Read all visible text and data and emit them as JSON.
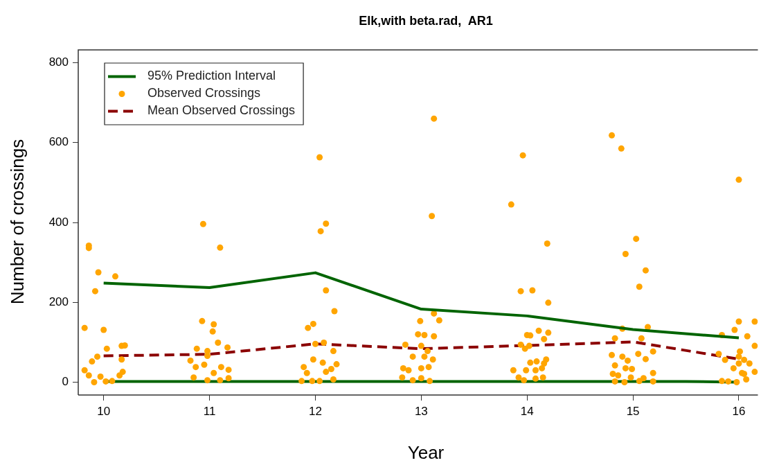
{
  "chart_data": {
    "type": "scatter",
    "title": "Elk,with beta.rad,  AR1",
    "xlabel": "Year",
    "ylabel": "Number of crossings",
    "xlim": [
      9.76,
      16.18
    ],
    "xticks": [
      10,
      11,
      12,
      13,
      14,
      15,
      16
    ],
    "ylim": [
      -32,
      832
    ],
    "yticks": [
      0,
      200,
      400,
      600,
      800
    ],
    "grid": false,
    "legend": "top left",
    "series": [
      {
        "type": "line",
        "name": "95% Prediction Interval",
        "color": "#006400",
        "line_style": "solid",
        "marker": "none",
        "x": [
          10,
          11,
          12,
          13,
          14,
          15,
          16
        ],
        "values": [
          248,
          237,
          274,
          183,
          166,
          132,
          111
        ]
      },
      {
        "type": "scatter",
        "name": "Observed Crossings",
        "color": "#ffa500",
        "marker": "circle",
        "x": [
          9.86,
          9.95,
          9.92,
          9.86,
          10.11,
          9.82,
          10.0,
          10.03,
          10.17,
          10.2,
          9.94,
          9.89,
          10.17,
          9.82,
          9.86,
          9.91,
          9.97,
          10.02,
          10.08,
          10.15,
          10.18,
          10.94,
          11.1,
          10.93,
          11.04,
          11.03,
          10.88,
          10.98,
          11.08,
          11.17,
          10.98,
          10.82,
          10.87,
          10.95,
          11.11,
          11.18,
          10.85,
          10.98,
          11.04,
          11.1,
          11.18,
          12.05,
          12.1,
          12.04,
          12.1,
          12.18,
          11.93,
          11.98,
          12.0,
          12.08,
          12.17,
          11.98,
          12.07,
          11.89,
          11.92,
          12.1,
          12.15,
          12.2,
          11.87,
          11.97,
          12.04,
          12.17,
          13.12,
          13.1,
          12.99,
          13.12,
          13.17,
          12.97,
          13.03,
          13.12,
          12.85,
          13.0,
          13.06,
          12.92,
          13.03,
          13.11,
          12.83,
          12.88,
          13.0,
          13.07,
          12.82,
          12.92,
          13.0,
          13.08,
          13.85,
          13.96,
          14.19,
          13.94,
          14.05,
          14.2,
          14.0,
          14.03,
          14.11,
          14.2,
          14.16,
          13.94,
          14.02,
          13.98,
          14.03,
          14.09,
          14.16,
          14.18,
          13.99,
          14.08,
          14.14,
          13.87,
          13.92,
          13.97,
          14.08,
          14.15,
          14.8,
          14.89,
          15.03,
          14.93,
          15.12,
          15.06,
          14.9,
          15.14,
          14.83,
          15.08,
          14.8,
          14.9,
          15.05,
          15.12,
          15.19,
          14.83,
          14.95,
          14.93,
          14.99,
          14.81,
          14.86,
          14.98,
          15.19,
          14.83,
          14.92,
          15.06,
          15.1,
          15.19,
          16.0,
          16.0,
          15.96,
          15.84,
          16.15,
          16.08,
          15.81,
          15.87,
          16.01,
          16.15,
          16.0,
          16.05,
          15.95,
          16.1,
          16.0,
          16.15,
          16.03,
          15.84,
          15.9,
          15.98,
          16.07,
          16.05
        ],
        "values": [
          342,
          275,
          228,
          336,
          265,
          136,
          131,
          84,
          91,
          92,
          64,
          52,
          57,
          30,
          17,
          0,
          14,
          2,
          3,
          17,
          26,
          396,
          337,
          153,
          145,
          127,
          84,
          78,
          99,
          87,
          66,
          54,
          38,
          44,
          38,
          31,
          12,
          5,
          23,
          5,
          10,
          378,
          397,
          563,
          230,
          178,
          136,
          146,
          96,
          99,
          78,
          57,
          49,
          38,
          23,
          26,
          33,
          45,
          3,
          3,
          3,
          7,
          660,
          416,
          153,
          172,
          155,
          120,
          118,
          115,
          94,
          91,
          78,
          64,
          64,
          57,
          35,
          30,
          35,
          38,
          12,
          5,
          10,
          3,
          445,
          568,
          347,
          228,
          230,
          199,
          118,
          117,
          129,
          124,
          108,
          94,
          91,
          84,
          49,
          52,
          47,
          57,
          30,
          30,
          35,
          30,
          12,
          5,
          9,
          12,
          618,
          585,
          359,
          321,
          280,
          239,
          134,
          138,
          110,
          110,
          68,
          64,
          71,
          58,
          77,
          42,
          54,
          35,
          33,
          21,
          17,
          12,
          23,
          2,
          0,
          3,
          10,
          2,
          507,
          152,
          131,
          118,
          152,
          115,
          71,
          56,
          77,
          91,
          64,
          56,
          35,
          47,
          47,
          26,
          23,
          3,
          2,
          0,
          7,
          21
        ]
      },
      {
        "type": "line",
        "name": "Mean Observed Crossings",
        "color": "#8b0000",
        "line_style": "dashed",
        "marker": "none",
        "x": [
          10,
          11,
          12,
          13,
          14,
          15,
          16
        ],
        "values": [
          66,
          70,
          96,
          84,
          92,
          101,
          58
        ]
      },
      {
        "type": "line",
        "color": "#006400",
        "line_style": "solid",
        "marker": "none",
        "x": [
          10,
          11,
          12,
          13,
          14,
          15,
          15.5,
          16
        ],
        "values": [
          2,
          2,
          2,
          2,
          2,
          2,
          2,
          0
        ]
      }
    ]
  }
}
